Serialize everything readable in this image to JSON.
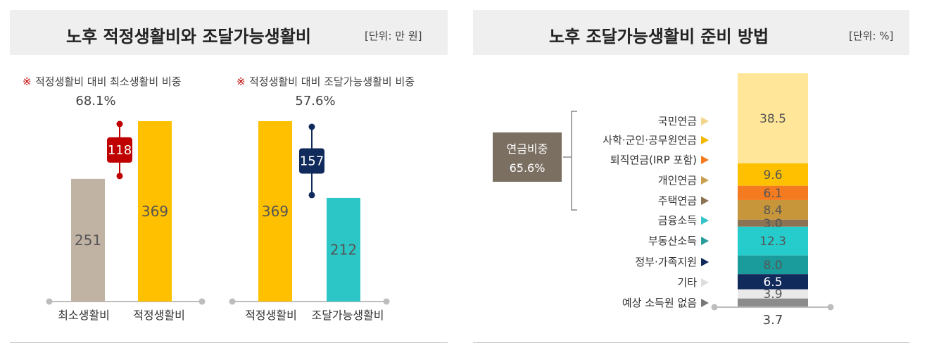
{
  "left_panel": {
    "title": "노후 적정생활비와 조달가능생활비",
    "unit": "[단위: 만 원]",
    "group1": {
      "note_mark": "※",
      "note": "적정생활비 대비 최소생활비 비중",
      "ratio": "68.1%",
      "diff": "118"
    },
    "group2": {
      "note_mark": "※",
      "note": "적정생활비 대비 조달가능생활비 비중",
      "ratio": "57.6%",
      "diff": "157"
    }
  },
  "right_panel": {
    "title": "노후 조달가능생활비 준비 방법",
    "unit": "[단위: %]",
    "pension_label": "연금비중",
    "pension_value": "65.6%",
    "bottom_label": "3.7"
  },
  "colors": {
    "min_living": "#c1b3a4",
    "proper_living": "#ffc000",
    "available_living": "#2dc6c6",
    "diff_red": "#c00000",
    "diff_navy": "#112a5c",
    "pension_box": "#7b6f62"
  },
  "chart_data": [
    {
      "type": "bar",
      "categories": [
        "최소생활비",
        "적정생활비"
      ],
      "values": [
        251,
        369
      ],
      "colors": [
        "#c1b3a4",
        "#ffc000"
      ]
    },
    {
      "type": "bar",
      "categories": [
        "적정생활비",
        "조달가능생활비"
      ],
      "values": [
        369,
        212
      ],
      "colors": [
        "#ffc000",
        "#2dc6c6"
      ]
    },
    {
      "type": "bar",
      "stacked": true,
      "categories": [
        "국민연금",
        "사학·군인·공무원연금",
        "퇴직연금(IRP 포함)",
        "개인연금",
        "주택연금",
        "금융소득",
        "부동산소득",
        "정부·가족지원",
        "기타",
        "예상 소득원 없음"
      ],
      "values": [
        38.5,
        9.6,
        6.1,
        8.4,
        3.0,
        12.3,
        8.0,
        6.5,
        3.9,
        3.7
      ],
      "colors": [
        "#ffe699",
        "#ffc000",
        "#f47b20",
        "#c7953a",
        "#8a7252",
        "#26cccc",
        "#1a9c9c",
        "#112a5c",
        "#e9e9e9",
        "#8c8c8c"
      ],
      "label_colors": [
        "#555555",
        "#555555",
        "#555555",
        "#555555",
        "#555555",
        "#555555",
        "#555555",
        "#ffffff",
        "#555555",
        "#555555"
      ],
      "arrow_colors": [
        "#f3d68b",
        "#f2b800",
        "#f47b20",
        "#c9a050",
        "#8a7252",
        "#36c3c9",
        "#2a9c9c",
        "#112a5c",
        "#dddddd",
        "#777777"
      ]
    }
  ]
}
